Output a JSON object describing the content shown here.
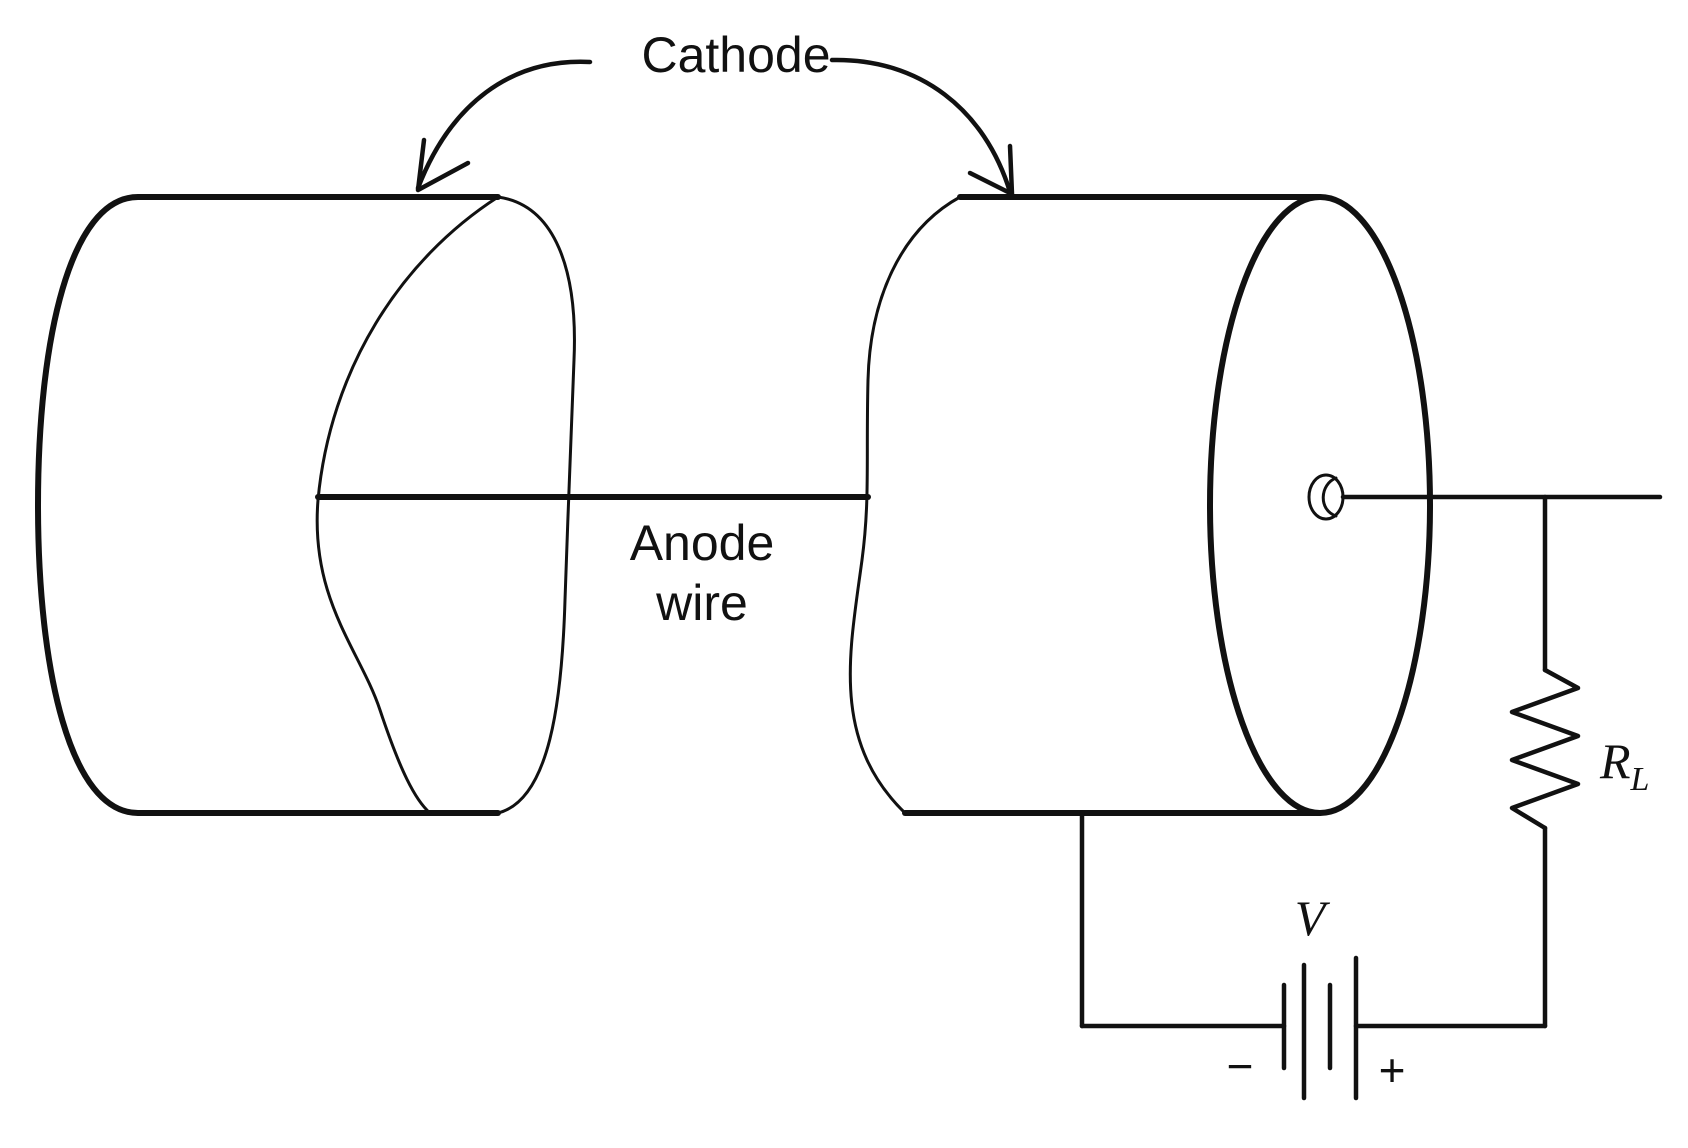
{
  "labels": {
    "cathode": "Cathode",
    "anode_line1": "Anode",
    "anode_line2": "wire",
    "resistor_main": "R",
    "resistor_sub": "L",
    "voltage": "V",
    "minus": "−",
    "plus": "+"
  },
  "colors": {
    "ink": "#111111",
    "background": "#ffffff"
  }
}
